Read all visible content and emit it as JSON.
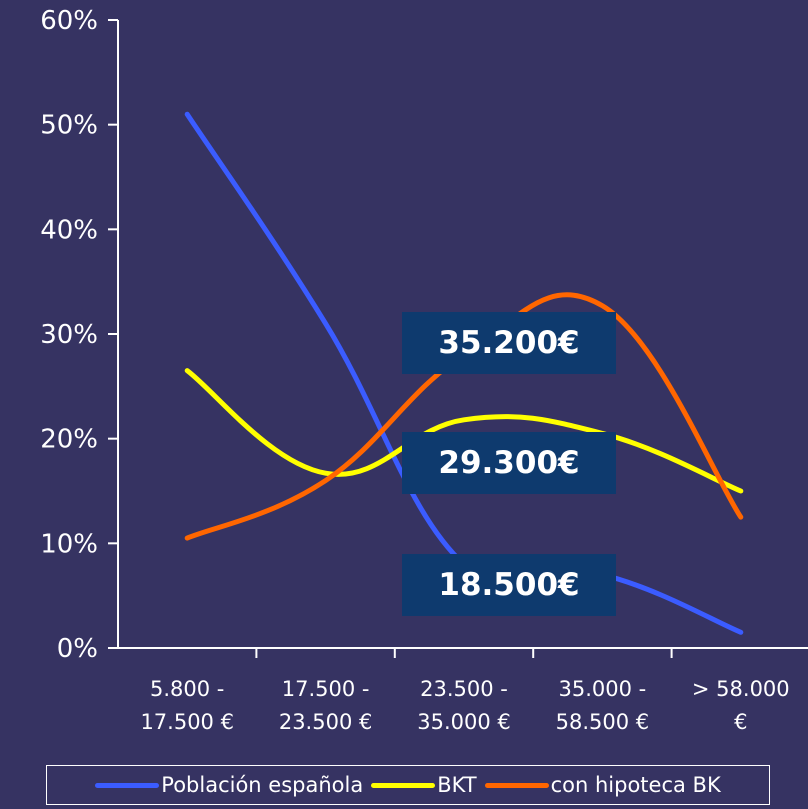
{
  "chart_data": {
    "type": "line",
    "title": "",
    "xlabel": "",
    "ylabel": "",
    "categories": [
      [
        "5.800 -",
        "17.500 €"
      ],
      [
        "17.500 -",
        "23.500 €"
      ],
      [
        "23.500 -",
        "35.000 €"
      ],
      [
        "35.000 -",
        "58.500 €"
      ],
      [
        "> 58.000",
        "€"
      ]
    ],
    "ylim": [
      0,
      60
    ],
    "yticks": [
      "0%",
      "10%",
      "20%",
      "30%",
      "40%",
      "50%",
      "60%"
    ],
    "grid": false,
    "legend_position": "bottom",
    "series": [
      {
        "name": "Población española",
        "color": "#3b5cff",
        "values": [
          51,
          31,
          8,
          7,
          1.5
        ]
      },
      {
        "name": "BKT",
        "color": "#ffff00",
        "values": [
          26.5,
          16.7,
          21.8,
          20.5,
          15
        ]
      },
      {
        "name": "con hipoteca BK",
        "color": "#ff6600",
        "values": [
          10.5,
          16,
          28,
          32.7,
          12.5
        ]
      }
    ],
    "annotations": [
      {
        "text": "35.200€",
        "x": 2.5,
        "y": 29.5
      },
      {
        "text": "29.300€",
        "x": 2.5,
        "y": 17.5
      },
      {
        "text": "18.500€",
        "x": 2.5,
        "y": 5.5
      }
    ]
  }
}
